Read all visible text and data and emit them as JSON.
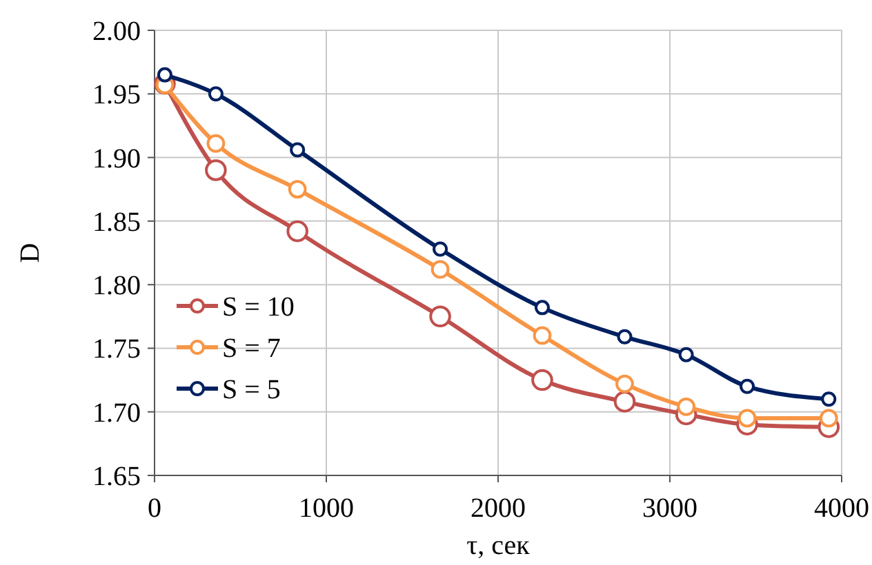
{
  "chart_data": {
    "type": "line",
    "xlabel": "τ, сек",
    "ylabel": "D",
    "xlim": [
      0,
      4000
    ],
    "xticks": [
      0,
      1000,
      2000,
      3000,
      4000
    ],
    "ylim": [
      1.65,
      2.0
    ],
    "yticks": [
      {
        "value": 1.65,
        "label": "1.65"
      },
      {
        "value": 1.7,
        "label": "1.70"
      },
      {
        "value": 1.75,
        "label": "1.75"
      },
      {
        "value": 1.8,
        "label": "1.80"
      },
      {
        "value": 1.85,
        "label": "1.85"
      },
      {
        "value": 1.9,
        "label": "1.90"
      },
      {
        "value": 1.95,
        "label": "1.95"
      },
      {
        "value": 2.0,
        "label": "2.00"
      }
    ],
    "grid": true,
    "legend": "left",
    "marker": "circle",
    "line_style": "solid",
    "x": [
      60,
      357,
      832,
      1663,
      2257,
      2737,
      3095,
      3450,
      3925
    ],
    "series": [
      {
        "name": "S = 10",
        "color": "#c0504d",
        "values": [
          1.958,
          1.89,
          1.842,
          1.775,
          1.725,
          1.708,
          1.698,
          1.69,
          1.688
        ]
      },
      {
        "name": "S = 7",
        "color": "#f79646",
        "values": [
          1.957,
          1.911,
          1.875,
          1.812,
          1.76,
          1.722,
          1.704,
          1.695,
          1.695
        ]
      },
      {
        "name": "S = 5",
        "color": "#002060",
        "values": [
          1.965,
          1.95,
          1.906,
          1.828,
          1.782,
          1.759,
          1.745,
          1.72,
          1.71
        ]
      }
    ]
  }
}
